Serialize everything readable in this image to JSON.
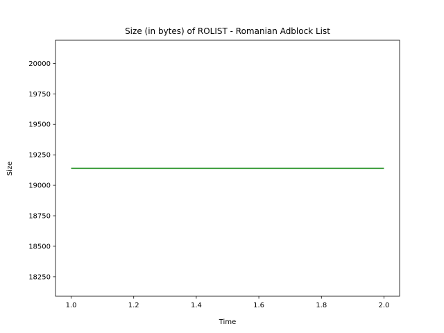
{
  "chart_data": {
    "type": "line",
    "title": "Size (in bytes) of ROLIST - Romanian Adblock List",
    "xlabel": "Time",
    "ylabel": "Size",
    "xlim": [
      0.95,
      2.05
    ],
    "ylim": [
      18090,
      20190
    ],
    "x_ticks": [
      1.0,
      1.2,
      1.4,
      1.6,
      1.8,
      2.0
    ],
    "x_tick_labels": [
      "1.0",
      "1.2",
      "1.4",
      "1.6",
      "1.8",
      "2.0"
    ],
    "y_ticks": [
      18250,
      18500,
      18750,
      19000,
      19250,
      19500,
      19750,
      20000
    ],
    "y_tick_labels": [
      "18250",
      "18500",
      "18750",
      "19000",
      "19250",
      "19500",
      "19750",
      "20000"
    ],
    "grid": false,
    "series": [
      {
        "color": "#008000",
        "x": [
          1,
          2
        ],
        "y": [
          19140,
          19140
        ]
      }
    ]
  }
}
